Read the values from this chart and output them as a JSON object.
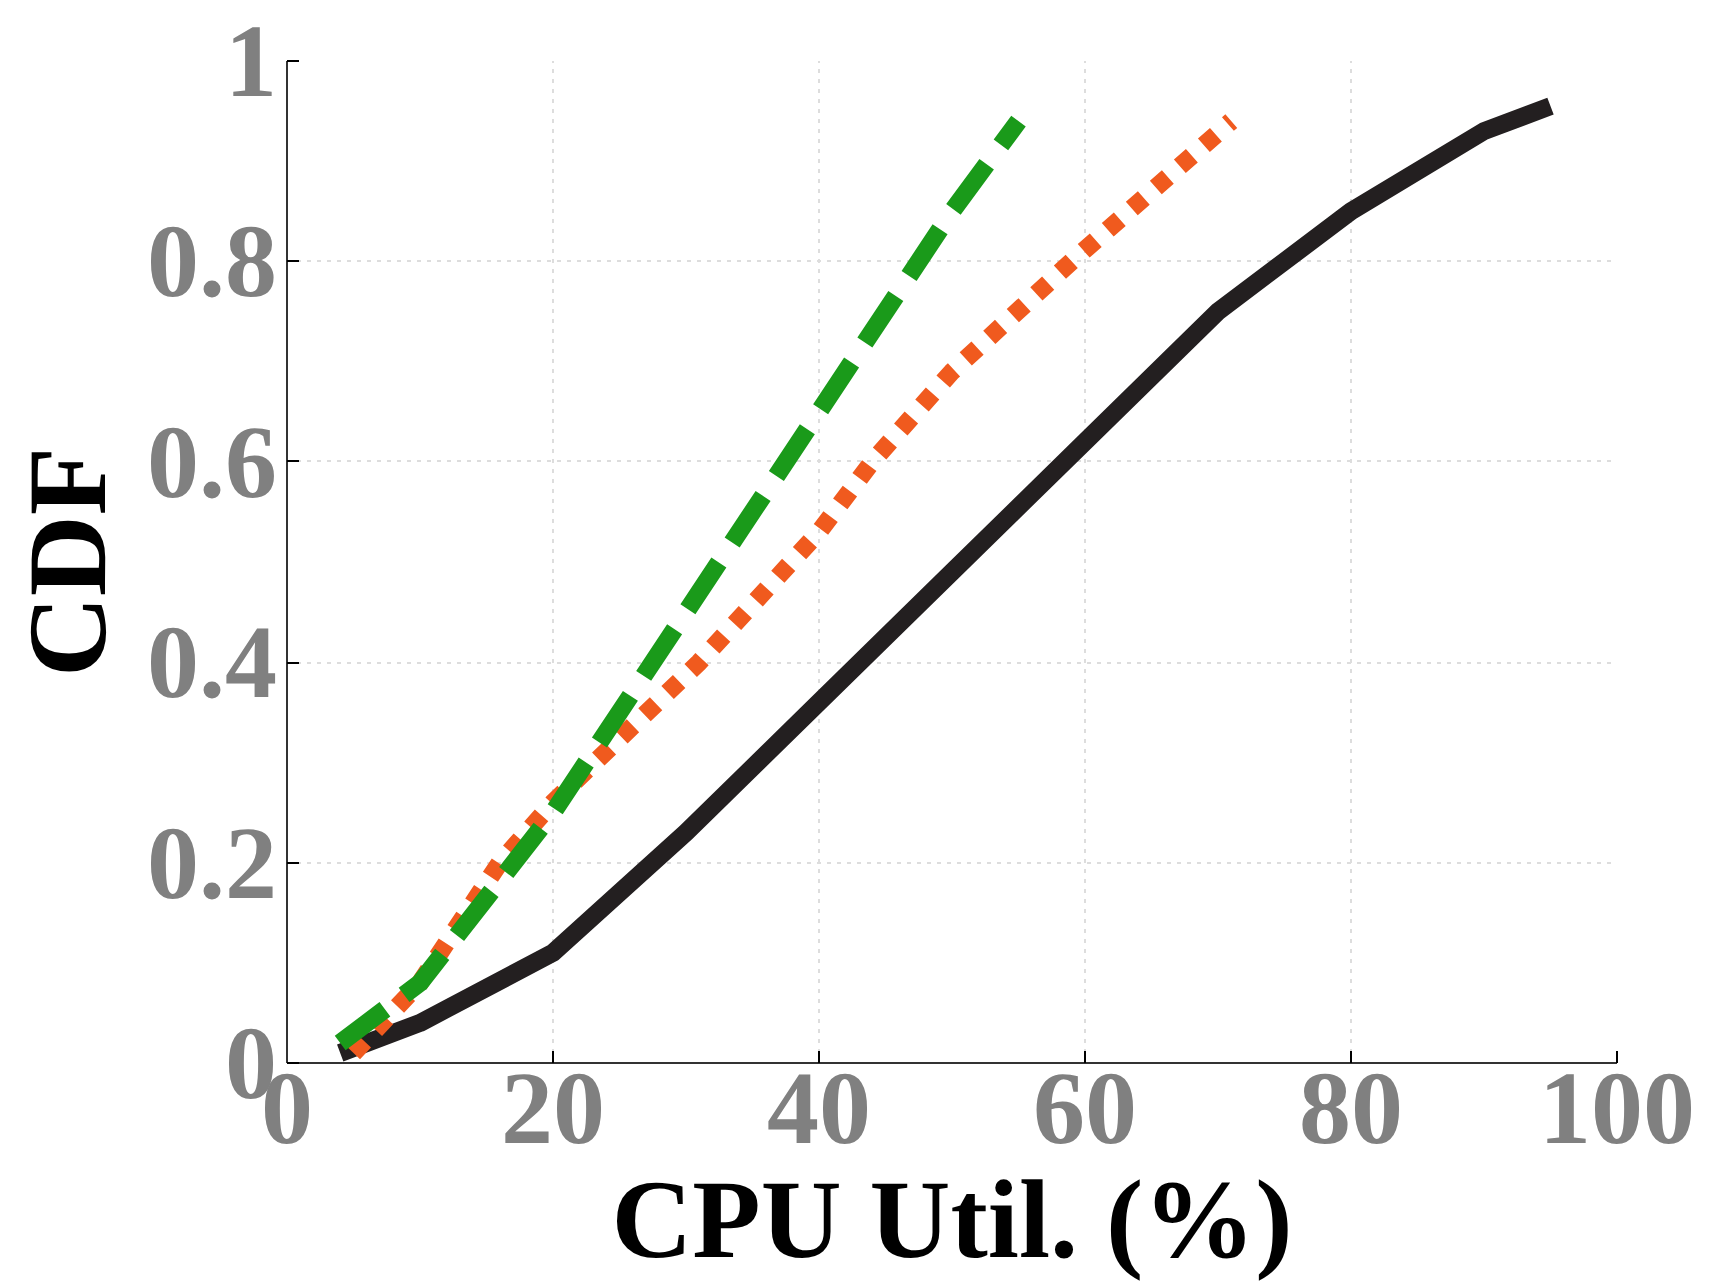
{
  "chart_data": {
    "type": "line",
    "xlabel": "CPU Util. (%)",
    "ylabel": "CDF",
    "xlim": [
      0,
      100
    ],
    "ylim": [
      0,
      1
    ],
    "xticks": [
      0,
      20,
      40,
      60,
      80,
      100
    ],
    "yticks": [
      0,
      0.2,
      0.4,
      0.6,
      0.8,
      1
    ],
    "grid": true,
    "series": [
      {
        "color": "#231f20",
        "line_style": "solid",
        "x": [
          4,
          10,
          20,
          30,
          40,
          50,
          60,
          70,
          80,
          90,
          95
        ],
        "values": [
          0.01,
          0.04,
          0.11,
          0.23,
          0.36,
          0.49,
          0.62,
          0.75,
          0.85,
          0.93,
          0.955
        ]
      },
      {
        "color": "#f05a1e",
        "line_style": "dotted",
        "x": [
          5,
          10,
          16,
          20,
          31,
          40,
          44,
          50,
          59,
          65,
          71
        ],
        "values": [
          0.01,
          0.08,
          0.2,
          0.26,
          0.4,
          0.53,
          0.6,
          0.69,
          0.8,
          0.87,
          0.94
        ]
      },
      {
        "color": "#1a9a1a",
        "line_style": "dashed",
        "x": [
          4,
          10,
          20,
          30,
          40,
          50,
          55
        ],
        "values": [
          0.02,
          0.08,
          0.25,
          0.45,
          0.65,
          0.85,
          0.94
        ]
      }
    ]
  }
}
